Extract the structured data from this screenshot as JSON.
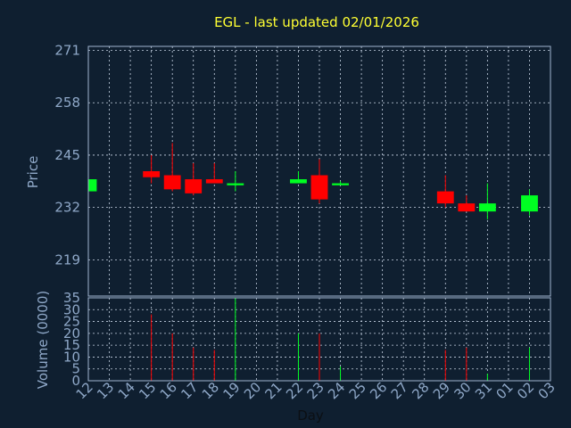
{
  "chart_data": {
    "type": "candlestick",
    "title": "EGL - last updated 02/01/2026",
    "ylabel": "Price",
    "volume_ylabel": "Volume (0000)",
    "xlabel": "Day",
    "ylim": [
      210,
      272
    ],
    "yticks": [
      271,
      258,
      245,
      232,
      219
    ],
    "volume_ylim": [
      0,
      35
    ],
    "volume_yticks": [
      35,
      30,
      25,
      20,
      15,
      10,
      5,
      0
    ],
    "x_tick_labels": [
      "12",
      "13",
      "14",
      "15",
      "16",
      "17",
      "18",
      "19",
      "20",
      "21",
      "22",
      "23",
      "24",
      "25",
      "26",
      "27",
      "28",
      "29",
      "30",
      "31",
      "01",
      "02",
      "03"
    ],
    "grid": true,
    "up_color": "#00ff22",
    "down_color": "#ff0000",
    "candles": [
      {
        "day": "12",
        "open": 236,
        "high": 239,
        "low": 236,
        "close": 239,
        "volume": 0
      },
      {
        "day": "15",
        "open": 241,
        "high": 245,
        "low": 238,
        "close": 239.5,
        "volume": 28
      },
      {
        "day": "16",
        "open": 240,
        "high": 248,
        "low": 236,
        "close": 236.5,
        "volume": 20
      },
      {
        "day": "17",
        "open": 239,
        "high": 243,
        "low": 235,
        "close": 235.5,
        "volume": 14
      },
      {
        "day": "18",
        "open": 239,
        "high": 243,
        "low": 238,
        "close": 238,
        "volume": 13
      },
      {
        "day": "19",
        "open": 237.5,
        "high": 241,
        "low": 236,
        "close": 238,
        "volume": 35
      },
      {
        "day": "22",
        "open": 238,
        "high": 241,
        "low": 238,
        "close": 239,
        "volume": 20
      },
      {
        "day": "23",
        "open": 240,
        "high": 244,
        "low": 233,
        "close": 234,
        "volume": 20
      },
      {
        "day": "24",
        "open": 237.5,
        "high": 238.5,
        "low": 237.5,
        "close": 238,
        "volume": 6
      },
      {
        "day": "29",
        "open": 236,
        "high": 240,
        "low": 232,
        "close": 233,
        "volume": 13
      },
      {
        "day": "30",
        "open": 233,
        "high": 235,
        "low": 231,
        "close": 231,
        "volume": 14
      },
      {
        "day": "31",
        "open": 231,
        "high": 238,
        "low": 229,
        "close": 233,
        "volume": 3
      },
      {
        "day": "02",
        "open": 231,
        "high": 236.5,
        "low": 230,
        "close": 235,
        "volume": 14
      }
    ]
  }
}
